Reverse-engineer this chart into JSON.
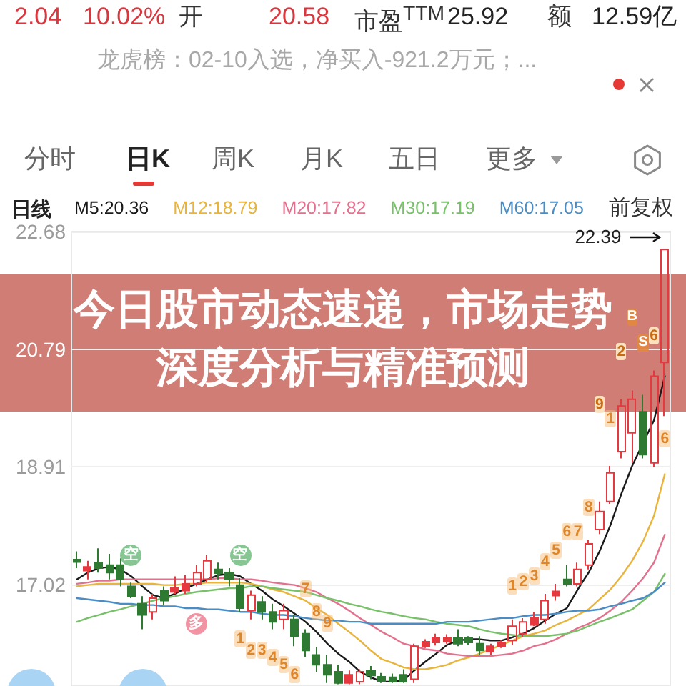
{
  "chart_data": {
    "type": "candlestick",
    "title": "今日股市动态速递，市场走势深度分析与精准预测",
    "annotations": [
      "2.04",
      "10.02%",
      "开",
      "20.58",
      "市盈$^{TTM}$",
      "25.92",
      "额",
      "12.59亿",
      "龙虎榜：02-10入选，净买入-921.2万元；...",
      "分时",
      "日K",
      "周K",
      "月K",
      "五日",
      "更多",
      "日线",
      "前复权",
      "22.39",
      "1",
      "2",
      "3",
      "4",
      "5",
      "6",
      "7",
      "8",
      "9",
      "1",
      "2",
      "3",
      "4",
      "5",
      "6",
      "7",
      "8",
      "9",
      "1",
      "2",
      "6",
      "6",
      "空",
      "多",
      "空",
      "B",
      "S"
    ],
    "categories": [
      null,
      null,
      null,
      null,
      null,
      null,
      null,
      null,
      null,
      null,
      null,
      null,
      null,
      null,
      null,
      null,
      null,
      null,
      null,
      null,
      null,
      null,
      null,
      null,
      null,
      null,
      null,
      null,
      null,
      null,
      null,
      null,
      null,
      null,
      null,
      null,
      null,
      null,
      null,
      null,
      null,
      null,
      null,
      null,
      null,
      null,
      null,
      null,
      null,
      null,
      null,
      null,
      null,
      null,
      null
    ],
    "ohlc": [
      [
        17.42,
        17.55,
        17.28,
        17.38
      ],
      [
        17.24,
        17.4,
        17.1,
        17.3
      ],
      [
        17.37,
        17.6,
        17.21,
        17.28
      ],
      [
        17.33,
        17.51,
        17.1,
        17.21
      ],
      [
        17.33,
        17.44,
        16.99,
        17.1
      ],
      [
        16.99,
        17.05,
        16.8,
        16.83
      ],
      [
        16.71,
        16.83,
        16.3,
        16.53
      ],
      [
        16.58,
        16.87,
        16.46,
        16.8
      ],
      [
        16.92,
        16.99,
        16.69,
        16.76
      ],
      [
        16.9,
        17.15,
        16.87,
        16.96
      ],
      [
        16.92,
        17.17,
        16.87,
        17.03
      ],
      [
        17.03,
        17.33,
        16.99,
        17.21
      ],
      [
        17.1,
        17.49,
        17.05,
        17.4
      ],
      [
        17.26,
        17.37,
        17.1,
        17.2
      ],
      [
        17.21,
        17.28,
        16.99,
        17.1
      ],
      [
        17.01,
        17.12,
        16.58,
        16.64
      ],
      [
        16.6,
        16.92,
        16.46,
        16.85
      ],
      [
        16.74,
        16.83,
        16.46,
        16.58
      ],
      [
        16.58,
        16.71,
        16.3,
        16.42
      ],
      [
        16.46,
        16.71,
        16.3,
        16.6
      ],
      [
        16.46,
        16.53,
        16.03,
        16.19
      ],
      [
        16.23,
        16.3,
        15.85,
        15.96
      ],
      [
        15.89,
        16.01,
        15.62,
        15.73
      ],
      [
        15.73,
        15.89,
        15.44,
        15.57
      ],
      [
        15.62,
        15.73,
        15.42,
        15.44
      ],
      [
        15.44,
        15.64,
        15.42,
        15.57
      ],
      [
        15.46,
        15.66,
        15.42,
        15.62
      ],
      [
        15.64,
        15.71,
        15.5,
        15.56
      ],
      [
        15.54,
        15.6,
        15.44,
        15.47
      ],
      [
        15.53,
        15.59,
        15.44,
        15.46
      ],
      [
        15.57,
        15.66,
        15.44,
        15.46
      ],
      [
        15.5,
        16.07,
        15.44,
        16.03
      ],
      [
        16.03,
        16.14,
        16.0,
        16.1
      ],
      [
        16.09,
        16.23,
        16.04,
        16.17
      ],
      [
        16.1,
        16.22,
        16.07,
        16.17
      ],
      [
        16.17,
        16.3,
        16.03,
        16.07
      ],
      [
        16.16,
        16.19,
        16.05,
        16.09
      ],
      [
        16.07,
        16.19,
        15.89,
        15.96
      ],
      [
        15.94,
        16.07,
        15.89,
        16.03
      ],
      [
        16.02,
        16.12,
        16.0,
        16.09
      ],
      [
        16.12,
        16.46,
        16.05,
        16.35
      ],
      [
        16.23,
        16.48,
        16.17,
        16.42
      ],
      [
        16.37,
        16.58,
        16.35,
        16.48
      ],
      [
        16.46,
        16.87,
        16.39,
        16.76
      ],
      [
        16.84,
        17.03,
        16.76,
        16.91
      ],
      [
        17.1,
        17.33,
        16.99,
        17.03
      ],
      [
        17.03,
        17.37,
        16.99,
        17.26
      ],
      [
        17.33,
        17.74,
        17.26,
        17.67
      ],
      [
        17.9,
        18.35,
        17.83,
        18.19
      ],
      [
        18.35,
        18.92,
        18.31,
        18.81
      ],
      [
        19.15,
        19.99,
        19.04,
        19.88
      ],
      [
        19.45,
        20.13,
        18.97,
        19.99
      ],
      [
        19.79,
        20.06,
        19.04,
        19.1
      ],
      [
        18.97,
        20.45,
        18.9,
        20.36
      ],
      [
        20.58,
        22.39,
        19.72,
        22.39
      ]
    ],
    "colors": [
      "#2f7a32",
      "#e5383f",
      "#2f7a32",
      "#2f7a32",
      "#2f7a32",
      "#2f7a32",
      "#2f7a32",
      "#e5383f",
      "#2f7a32",
      "#e5383f",
      "#e5383f",
      "#e5383f",
      "#e5383f",
      "#2f7a32",
      "#2f7a32",
      "#2f7a32",
      "#e5383f",
      "#2f7a32",
      "#2f7a32",
      "#e5383f",
      "#2f7a32",
      "#2f7a32",
      "#2f7a32",
      "#2f7a32",
      "#2f7a32",
      "#e5383f",
      "#e5383f",
      "#2f7a32",
      "#2f7a32",
      "#2f7a32",
      "#2f7a32",
      "#e5383f",
      "#e5383f",
      "#e5383f",
      "#e5383f",
      "#2f7a32",
      "#2f7a32",
      "#2f7a32",
      "#e5383f",
      "#e5383f",
      "#e5383f",
      "#e5383f",
      "#e5383f",
      "#e5383f",
      "#e5383f",
      "#2f7a32",
      "#e5383f",
      "#e5383f",
      "#e5383f",
      "#e5383f",
      "#e5383f",
      "#e5383f",
      "#2f7a32",
      "#e5383f",
      "#e5383f"
    ],
    "series": [
      {
        "name": "M5:20.36",
        "type": "line",
        "color": "#1a1a1a",
        "values": [
          17.1,
          17.21,
          17.28,
          17.3,
          17.26,
          17.15,
          16.99,
          16.85,
          16.8,
          16.87,
          16.96,
          17.03,
          17.1,
          17.17,
          17.19,
          17.15,
          17.03,
          16.92,
          16.78,
          16.67,
          16.55,
          16.42,
          16.26,
          16.07,
          15.91,
          15.78,
          15.62,
          15.53,
          15.46,
          15.46,
          15.48,
          15.64,
          15.78,
          15.91,
          16.05,
          16.12,
          16.14,
          16.14,
          16.12,
          16.12,
          16.17,
          16.23,
          16.32,
          16.44,
          16.55,
          16.64,
          16.94,
          17.21,
          17.55,
          17.97,
          18.47,
          18.92,
          null,
          19.65,
          20.36
        ]
      },
      {
        "name": "M12:18.79",
        "type": "line",
        "color": "#e8b43c",
        "values": [
          16.99,
          17.01,
          17.03,
          17.03,
          17.03,
          17.03,
          17.03,
          17.03,
          17.01,
          17.01,
          17.03,
          17.03,
          17.05,
          17.05,
          17.05,
          17.05,
          17.03,
          16.99,
          16.94,
          16.9,
          16.83,
          16.76,
          16.64,
          16.53,
          16.39,
          16.26,
          16.12,
          15.96,
          15.82,
          15.76,
          15.69,
          15.66,
          15.66,
          15.69,
          15.73,
          15.8,
          15.85,
          15.91,
          15.98,
          16.05,
          16.12,
          16.19,
          16.23,
          16.28,
          16.37,
          16.44,
          16.53,
          16.62,
          16.78,
          16.94,
          17.15,
          17.4,
          17.71,
          18.12,
          18.79
        ]
      },
      {
        "name": "M20:17.82",
        "type": "line",
        "color": "#e3708c",
        "values": [
          17.03,
          17.05,
          17.08,
          17.08,
          17.1,
          17.1,
          17.1,
          17.1,
          17.1,
          17.1,
          17.1,
          17.1,
          17.1,
          17.12,
          17.12,
          17.1,
          17.1,
          17.08,
          17.05,
          17.03,
          17.01,
          16.96,
          16.9,
          16.8,
          16.71,
          16.6,
          16.48,
          16.37,
          16.26,
          16.17,
          16.07,
          16.03,
          15.98,
          15.96,
          15.91,
          15.89,
          15.87,
          15.87,
          15.87,
          15.89,
          15.91,
          15.96,
          16.03,
          16.07,
          16.14,
          16.23,
          16.32,
          16.39,
          16.48,
          16.6,
          16.74,
          16.92,
          17.12,
          17.37,
          17.82
        ]
      },
      {
        "name": "M30:17.19",
        "type": "line",
        "color": "#78c06a",
        "values": [
          16.42,
          16.48,
          16.53,
          16.58,
          16.62,
          16.67,
          16.71,
          16.76,
          16.8,
          16.83,
          16.87,
          16.9,
          16.92,
          16.94,
          16.96,
          16.96,
          16.99,
          16.99,
          16.96,
          16.94,
          16.92,
          16.9,
          16.85,
          16.8,
          16.76,
          16.71,
          16.67,
          16.62,
          16.58,
          16.55,
          16.51,
          16.48,
          16.46,
          16.42,
          16.39,
          16.37,
          16.35,
          16.3,
          16.26,
          16.23,
          16.21,
          16.19,
          16.19,
          16.19,
          16.21,
          16.23,
          16.28,
          16.35,
          16.42,
          16.48,
          16.55,
          16.62,
          16.76,
          16.9,
          17.19
        ]
      },
      {
        "name": "M60:17.05",
        "type": "line",
        "color": "#4a8cc4",
        "values": [
          16.8,
          16.78,
          16.76,
          16.74,
          16.71,
          16.71,
          16.69,
          16.69,
          16.67,
          16.67,
          16.64,
          16.64,
          16.62,
          16.62,
          16.6,
          16.58,
          16.58,
          16.55,
          16.53,
          16.53,
          16.51,
          16.48,
          16.46,
          16.44,
          16.44,
          16.42,
          16.42,
          16.39,
          16.39,
          16.39,
          16.39,
          16.39,
          16.39,
          16.39,
          16.42,
          16.42,
          16.42,
          16.44,
          16.46,
          16.48,
          16.48,
          16.51,
          16.53,
          16.53,
          16.55,
          16.58,
          16.6,
          16.6,
          16.62,
          16.67,
          16.71,
          16.76,
          16.8,
          16.9,
          17.05
        ]
      }
    ],
    "ylim": [
      15.39,
      22.68
    ],
    "yticks": [
      22.68,
      20.79,
      18.91,
      17.02
    ],
    "grid": "y",
    "legend": "top left",
    "tick_labels": "y",
    "marker": "none"
  }
}
